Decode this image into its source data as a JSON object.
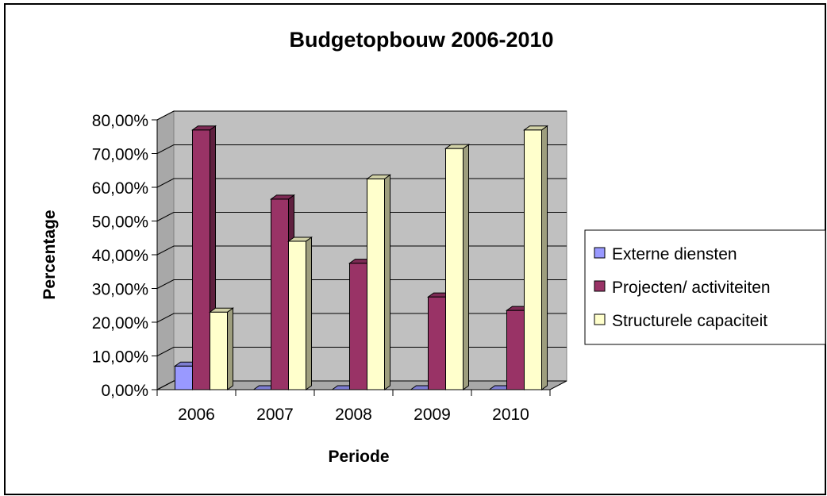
{
  "chart_data": {
    "type": "bar",
    "title": "Budgetopbouw 2006-2010",
    "xlabel": "Periode",
    "ylabel": "Percentage",
    "categories": [
      "2006",
      "2007",
      "2008",
      "2009",
      "2010"
    ],
    "ylim": [
      0,
      80
    ],
    "yticks": [
      "0,00%",
      "10,00%",
      "20,00%",
      "30,00%",
      "40,00%",
      "50,00%",
      "60,00%",
      "70,00%",
      "80,00%"
    ],
    "grid": true,
    "legend_position": "right",
    "series": [
      {
        "name": "Externe diensten",
        "values": [
          7.0,
          0,
          0,
          0,
          0
        ],
        "color": "#9999ff"
      },
      {
        "name": "Projecten/ activiteiten",
        "values": [
          77.0,
          56.5,
          37.5,
          27.5,
          23.5
        ],
        "color": "#993366"
      },
      {
        "name": "Structurele capaciteit",
        "values": [
          23.0,
          44.0,
          62.5,
          71.5,
          77.0
        ],
        "color": "#ffffcc"
      }
    ]
  }
}
